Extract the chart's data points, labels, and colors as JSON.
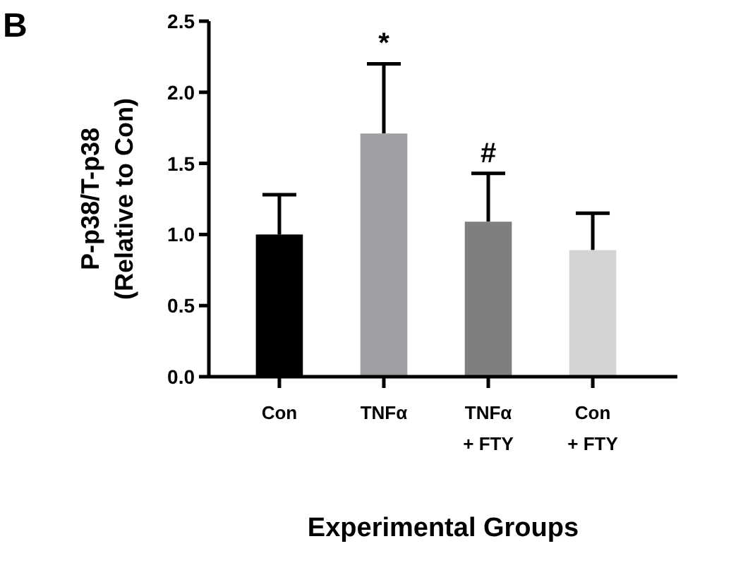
{
  "chart_data": {
    "type": "bar",
    "categories": [
      "Con",
      "TNFα",
      "TNFα\n+ FTY",
      "Con\n+ FTY"
    ],
    "values": [
      1.0,
      1.71,
      1.09,
      0.89
    ],
    "colors": [
      "#000000",
      "#a0a0a4",
      "#7f7f7f",
      "#d4d4d4"
    ],
    "errors": [
      [
        1.0,
        1.28
      ],
      [
        1.71,
        2.2
      ],
      [
        1.09,
        1.43
      ],
      [
        0.89,
        1.15
      ]
    ],
    "ylim": [
      0,
      2.5
    ],
    "yticks": [
      {
        "value": 0,
        "label": "0.0"
      },
      0.5,
      {
        "value": 1,
        "label": "1.0"
      },
      1.5,
      {
        "value": 2,
        "label": "2.0"
      },
      2.5
    ],
    "ylabel": "P-p38/T-p38\n(Relative to Con)",
    "xlabel": "Experimental Groups",
    "annotations": [
      "B",
      "*",
      "#"
    ],
    "grid": false
  }
}
